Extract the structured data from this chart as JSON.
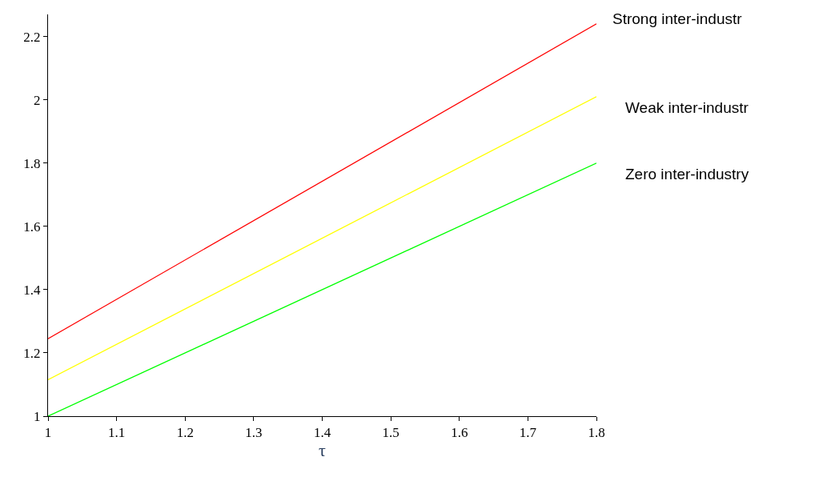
{
  "chart_data": {
    "type": "line",
    "xlabel": "τ",
    "x": [
      1,
      1.8
    ],
    "series": [
      {
        "name": "Strong inter-industr",
        "color": "#ff0000",
        "values": [
          1.245,
          2.24
        ]
      },
      {
        "name": "Weak inter-industr",
        "color": "#ffff00",
        "values": [
          1.115,
          2.01
        ]
      },
      {
        "name": "Zero inter-industry",
        "color": "#00ff00",
        "values": [
          1.0,
          1.8
        ]
      }
    ],
    "xlim": [
      1,
      1.8
    ],
    "xticks": [
      1,
      1.1,
      1.2,
      1.3,
      1.4,
      1.5,
      1.6,
      1.7,
      1.8
    ],
    "ylim": [
      1,
      2.27
    ],
    "yticks": [
      1,
      1.2,
      1.4,
      1.6,
      1.8,
      2,
      2.2
    ],
    "grid": false,
    "legend": false,
    "marker": "none",
    "line_style": "solid"
  }
}
